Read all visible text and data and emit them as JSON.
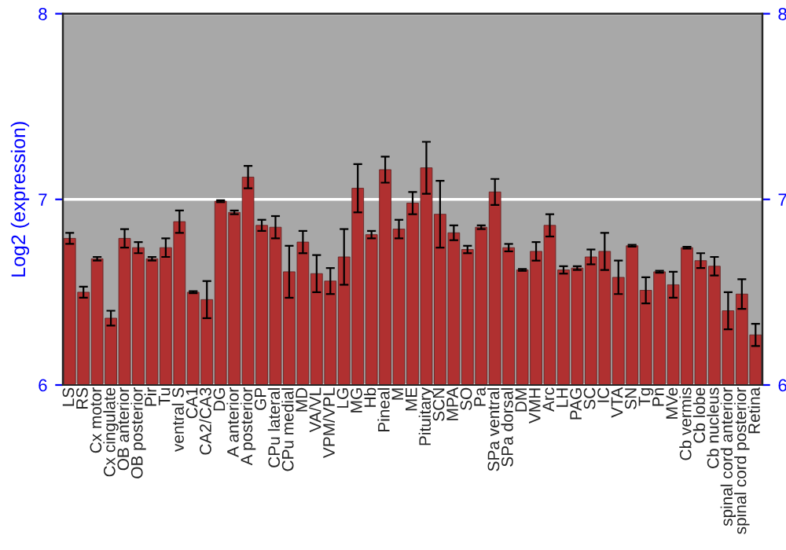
{
  "chart_data": {
    "type": "bar",
    "ylabel": "Log2 (expression)",
    "categories": [
      "LS",
      "RS",
      "Cx motor",
      "Cx cingulate",
      "OB anterior",
      "OB posterior",
      "Pir",
      "Tu",
      "ventral S",
      "CA1",
      "CA2/CA3",
      "DG",
      "A anterior",
      "A posterior",
      "GP",
      "CPu lateral",
      "CPu medial",
      "MD",
      "VA/VL",
      "VPM/VPL",
      "LG",
      "MG",
      "Hb",
      "Pineal",
      "M",
      "ME",
      "Pituitary",
      "SCN",
      "MPA",
      "SO",
      "Pa",
      "SPa ventral",
      "SPa dorsal",
      "DM",
      "VMH",
      "Arc",
      "LH",
      "PAG",
      "SC",
      "IC",
      "VTA",
      "SN",
      "Tg",
      "Pn",
      "MVe",
      "Cb vermis",
      "Cb lobe",
      "Cb nucleus",
      "spinal cord anterior",
      "spinal cord posterior",
      "Retina"
    ],
    "values": [
      6.79,
      6.5,
      6.68,
      6.36,
      6.79,
      6.74,
      6.68,
      6.74,
      6.88,
      6.5,
      6.46,
      6.99,
      6.93,
      7.12,
      6.86,
      6.85,
      6.61,
      6.77,
      6.6,
      6.56,
      6.69,
      7.06,
      6.81,
      7.16,
      6.84,
      6.98,
      7.17,
      6.92,
      6.82,
      6.73,
      6.85,
      7.04,
      6.74,
      6.62,
      6.72,
      6.86,
      6.62,
      6.63,
      6.69,
      6.72,
      6.58,
      6.75,
      6.51,
      6.61,
      6.54,
      6.74,
      6.67,
      6.64,
      6.4,
      6.49,
      6.27
    ],
    "errors": [
      0.03,
      0.03,
      0.01,
      0.04,
      0.05,
      0.03,
      0.01,
      0.05,
      0.06,
      0.005,
      0.1,
      0.005,
      0.01,
      0.06,
      0.03,
      0.06,
      0.14,
      0.06,
      0.1,
      0.07,
      0.15,
      0.13,
      0.02,
      0.07,
      0.05,
      0.06,
      0.14,
      0.18,
      0.04,
      0.02,
      0.01,
      0.07,
      0.02,
      0.005,
      0.05,
      0.06,
      0.02,
      0.01,
      0.04,
      0.1,
      0.09,
      0.005,
      0.07,
      0.005,
      0.07,
      0.005,
      0.04,
      0.05,
      0.1,
      0.08,
      0.06
    ],
    "color": "#b03030",
    "ylim": [
      6,
      8
    ],
    "yticks": [
      6,
      7,
      8
    ],
    "y2lim": [
      6,
      8
    ],
    "y2ticks": [
      6,
      7,
      8
    ],
    "grid": "y",
    "legend": false
  }
}
